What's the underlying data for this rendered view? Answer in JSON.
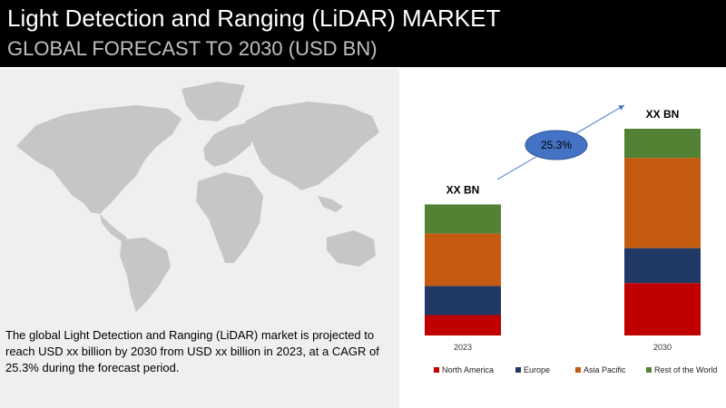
{
  "header": {
    "title": "Light Detection and Ranging (LiDAR)  MARKET",
    "subtitle": "GLOBAL FORECAST TO 2030 (USD BN)"
  },
  "description": "The global Light Detection and Ranging (LiDAR)  market is projected to reach USD xx billion by 2030 from USD xx billion in 2023, at a CAGR of 25.3% during the forecast period.",
  "colors": {
    "header_bg": "#000000",
    "map_fill": "#c6c6c6",
    "north_america": "#c00000",
    "europe": "#203864",
    "asia_pacific": "#c55a11",
    "rest_of_world": "#548235",
    "cagr_bubble": "#4472c4"
  },
  "chart_data": {
    "type": "bar",
    "stacked": true,
    "categories": [
      "2023",
      "2030"
    ],
    "totals": [
      "XX BN",
      "XX BN"
    ],
    "cagr_label": "25.3%",
    "series": [
      {
        "name": "North America",
        "values": [
          7,
          18
        ],
        "color": "#c00000"
      },
      {
        "name": "Europe",
        "values": [
          10,
          12
        ],
        "color": "#203864"
      },
      {
        "name": "Asia Pacific",
        "values": [
          18,
          31
        ],
        "color": "#c55a11"
      },
      {
        "name": "Rest of the World",
        "values": [
          10,
          10
        ],
        "color": "#548235"
      }
    ],
    "legend_position": "bottom",
    "grid": false
  }
}
